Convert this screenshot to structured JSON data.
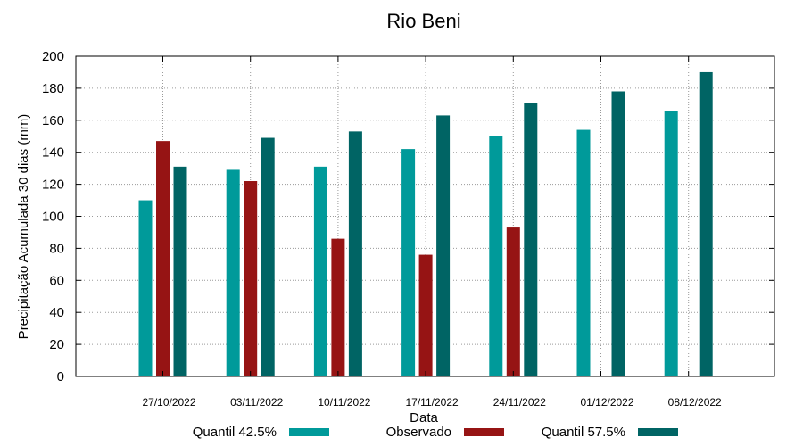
{
  "chart_data": {
    "type": "bar",
    "title": "Rio Beni",
    "xlabel": "Data",
    "ylabel": "Precipitação Acumulada 30 dias (mm)",
    "ylim": [
      0,
      200
    ],
    "yticks": [
      0,
      20,
      40,
      60,
      80,
      100,
      120,
      140,
      160,
      180,
      200
    ],
    "grid": true,
    "legend_position": "bottom",
    "categories": [
      "27/10/2022",
      "03/11/2022",
      "10/11/2022",
      "17/11/2022",
      "24/11/2022",
      "01/12/2022",
      "08/12/2022"
    ],
    "series": [
      {
        "name": "Quantil 42.5%",
        "color": "#009a9a",
        "values": [
          110,
          129,
          131,
          142,
          150,
          154,
          166
        ]
      },
      {
        "name": "Observado",
        "color": "#961414",
        "values": [
          147,
          122,
          86,
          76,
          93,
          null,
          null
        ]
      },
      {
        "name": "Quantil 57.5%",
        "color": "#006464",
        "values": [
          131,
          149,
          153,
          163,
          171,
          178,
          190
        ]
      }
    ]
  }
}
